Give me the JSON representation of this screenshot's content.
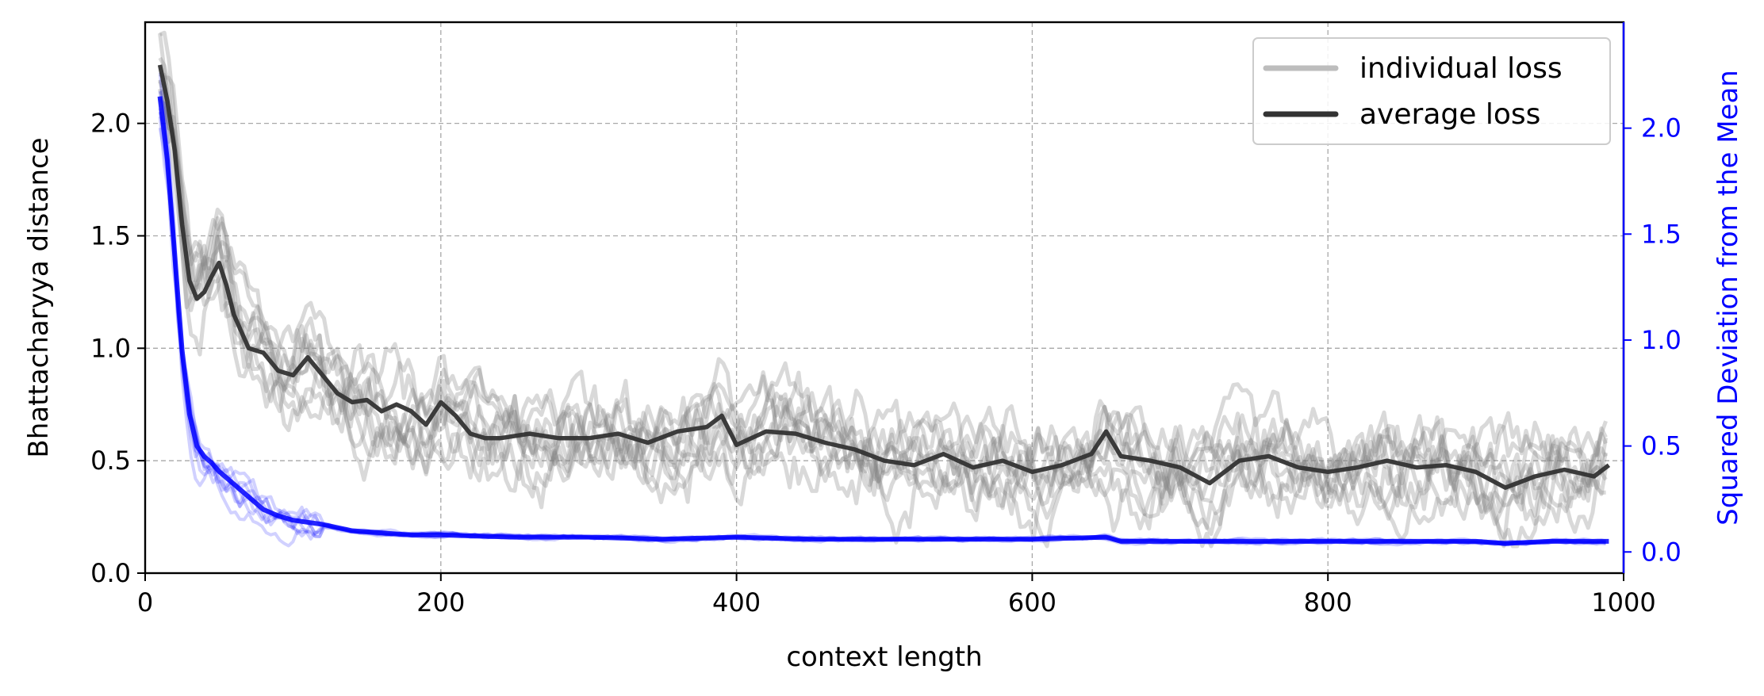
{
  "chart_data": {
    "type": "line",
    "title": "",
    "xlabel": "context length",
    "ylabel": "Bhattacharyya distance",
    "y2label": "Squared Deviation from the Mean",
    "xlim": [
      0,
      1000
    ],
    "ylim": [
      0,
      2.45
    ],
    "y2lim": [
      -0.1,
      2.5
    ],
    "xticks": [
      0,
      200,
      400,
      600,
      800,
      1000
    ],
    "yticks": [
      0.0,
      0.5,
      1.0,
      1.5,
      2.0
    ],
    "y2ticks": [
      0.0,
      0.5,
      1.0,
      1.5,
      2.0
    ],
    "grid": true,
    "legend_position": "top-right",
    "legend": [
      {
        "label": "individual loss",
        "color": "#bdbdbd"
      },
      {
        "label": "average loss",
        "color": "#333333"
      }
    ],
    "colors": {
      "individual_loss": "#808080",
      "average_loss": "#333333",
      "deviation": "#0000ff",
      "right_axis": "#0000ff"
    },
    "series": [
      {
        "name": "average loss",
        "axis": "left",
        "x": [
          10,
          15,
          20,
          25,
          30,
          35,
          40,
          45,
          50,
          55,
          60,
          70,
          80,
          90,
          100,
          110,
          120,
          130,
          140,
          150,
          160,
          170,
          180,
          190,
          200,
          210,
          220,
          230,
          240,
          260,
          280,
          300,
          320,
          340,
          360,
          380,
          390,
          400,
          420,
          440,
          460,
          480,
          500,
          520,
          540,
          560,
          580,
          600,
          620,
          640,
          650,
          660,
          680,
          700,
          720,
          740,
          760,
          780,
          800,
          820,
          840,
          860,
          880,
          900,
          920,
          940,
          960,
          980,
          990
        ],
        "values": [
          2.26,
          2.1,
          1.88,
          1.55,
          1.3,
          1.22,
          1.25,
          1.32,
          1.38,
          1.28,
          1.15,
          1.0,
          0.98,
          0.9,
          0.88,
          0.96,
          0.88,
          0.8,
          0.76,
          0.77,
          0.72,
          0.75,
          0.72,
          0.66,
          0.76,
          0.7,
          0.62,
          0.6,
          0.6,
          0.62,
          0.6,
          0.6,
          0.62,
          0.58,
          0.63,
          0.65,
          0.7,
          0.57,
          0.63,
          0.62,
          0.58,
          0.55,
          0.5,
          0.48,
          0.53,
          0.47,
          0.5,
          0.45,
          0.48,
          0.53,
          0.63,
          0.52,
          0.5,
          0.47,
          0.4,
          0.5,
          0.52,
          0.47,
          0.45,
          0.47,
          0.5,
          0.47,
          0.48,
          0.45,
          0.38,
          0.43,
          0.46,
          0.43,
          0.48
        ]
      },
      {
        "name": "",
        "axis": "right",
        "x": [
          10,
          15,
          20,
          25,
          30,
          35,
          40,
          45,
          50,
          60,
          70,
          80,
          90,
          100,
          120,
          140,
          160,
          180,
          200,
          250,
          300,
          350,
          400,
          450,
          500,
          550,
          600,
          650,
          660,
          700,
          750,
          800,
          850,
          900,
          920,
          950,
          990
        ],
        "values": [
          2.15,
          1.85,
          1.4,
          0.95,
          0.65,
          0.5,
          0.45,
          0.42,
          0.38,
          0.32,
          0.26,
          0.2,
          0.17,
          0.15,
          0.13,
          0.1,
          0.09,
          0.08,
          0.08,
          0.07,
          0.07,
          0.06,
          0.07,
          0.06,
          0.06,
          0.06,
          0.06,
          0.07,
          0.05,
          0.05,
          0.05,
          0.05,
          0.05,
          0.05,
          0.04,
          0.05,
          0.05
        ]
      }
    ]
  }
}
